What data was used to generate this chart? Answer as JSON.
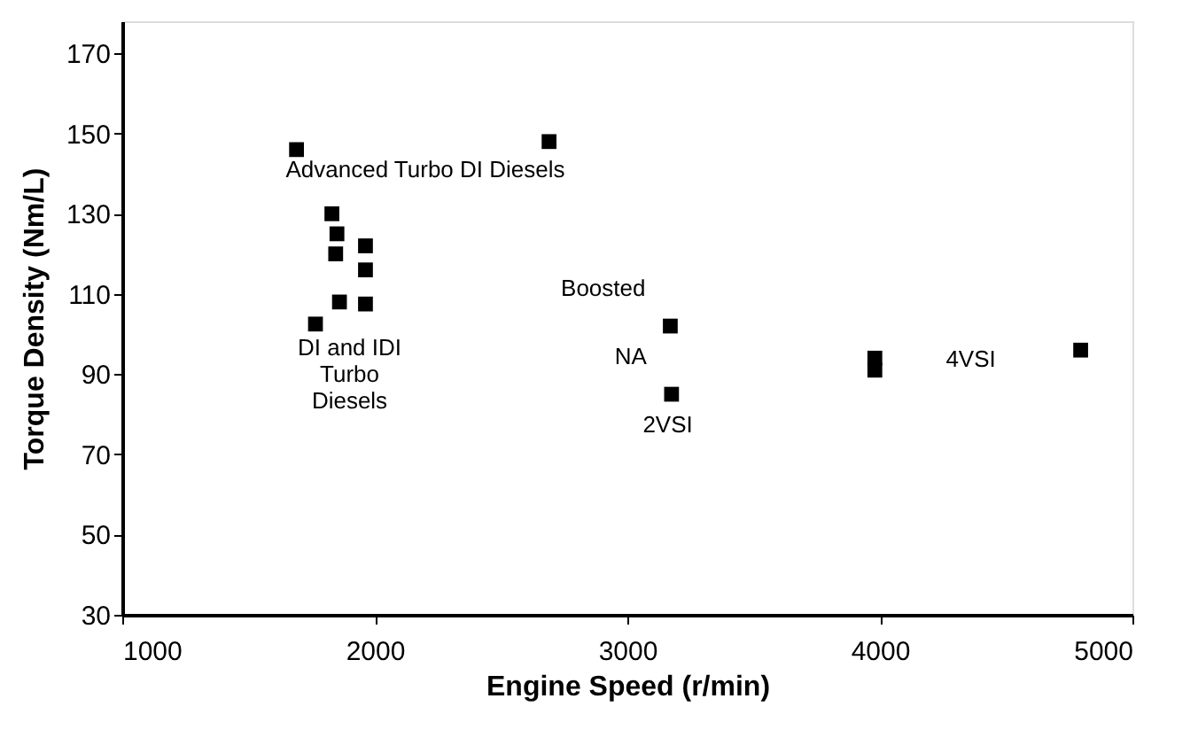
{
  "chart_data": {
    "type": "scatter",
    "xlabel": "Engine Speed (r/min)",
    "ylabel": "Torque Density  (Nm/L)",
    "x": [
      1690,
      2690,
      1830,
      1850,
      1845,
      1963,
      1963,
      1860,
      1963,
      1765,
      3170,
      3175,
      3980,
      3980,
      4795
    ],
    "series": [
      {
        "color": "#000000",
        "values": [
          146,
          148,
          130,
          125,
          120,
          122,
          116,
          108,
          107.5,
          102.5,
          102,
          85,
          94,
          91,
          96
        ]
      }
    ],
    "marker": "square",
    "grid": false,
    "xlim": [
      1000,
      5000
    ],
    "xticks": [
      1000,
      2000,
      3000,
      4000,
      5000
    ],
    "ylim": [
      30,
      178
    ],
    "yticks": [
      30,
      50,
      70,
      90,
      110,
      130,
      150,
      170
    ],
    "annotations": [
      "Advanced Turbo DI Diesels",
      "DI and IDI\nTurbo\nDiesels",
      {
        "text": "Boosted",
        "x": 3170,
        "y": 102
      },
      {
        "text": "NA",
        "x": 3175,
        "y": 85
      },
      "2VSI",
      "4VSI"
    ]
  }
}
